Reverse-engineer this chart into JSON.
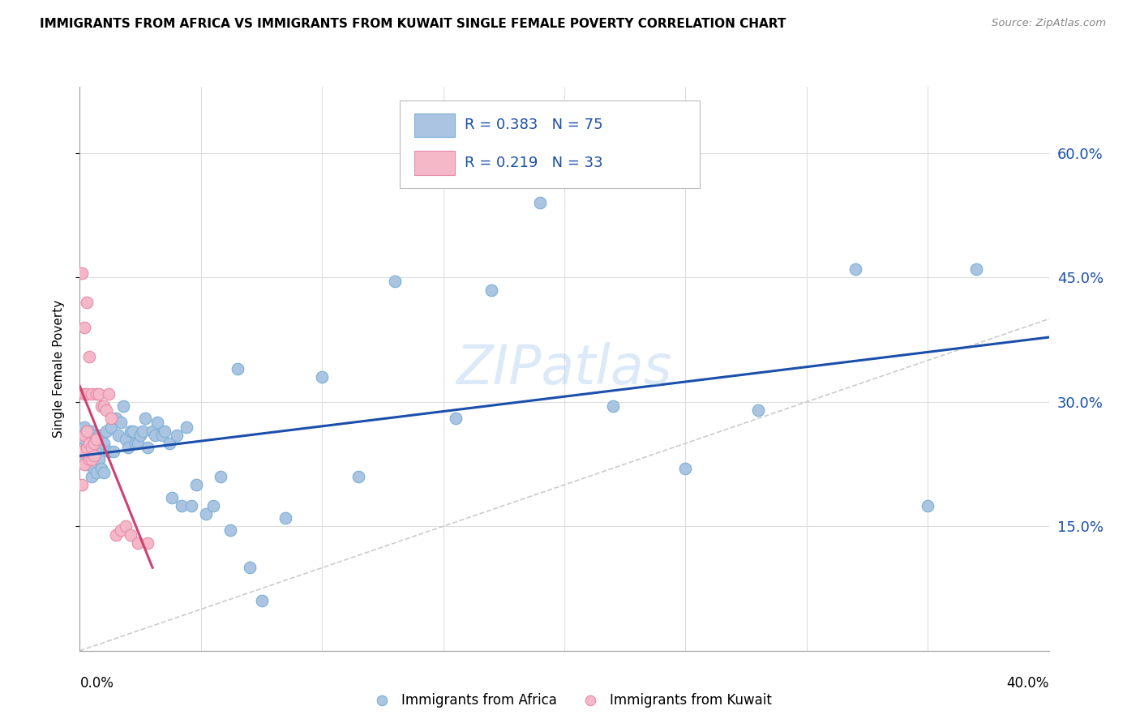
{
  "title": "IMMIGRANTS FROM AFRICA VS IMMIGRANTS FROM KUWAIT SINGLE FEMALE POVERTY CORRELATION CHART",
  "source": "Source: ZipAtlas.com",
  "ylabel": "Single Female Poverty",
  "ytick_labels": [
    "15.0%",
    "30.0%",
    "45.0%",
    "60.0%"
  ],
  "ytick_values": [
    0.15,
    0.3,
    0.45,
    0.6
  ],
  "xlim": [
    0.0,
    0.4
  ],
  "ylim": [
    0.0,
    0.68
  ],
  "legend_africa": "Immigrants from Africa",
  "legend_kuwait": "Immigrants from Kuwait",
  "r_africa": "0.383",
  "n_africa": "75",
  "r_kuwait": "0.219",
  "n_kuwait": "33",
  "africa_color": "#aac4e2",
  "africa_edge": "#7aafd4",
  "kuwait_color": "#f4b8c8",
  "kuwait_edge": "#e88aaa",
  "trendline_africa_color": "#1a4faa",
  "trendline_kuwait_color": "#d04070",
  "diagonal_color": "#cccccc",
  "background_color": "#ffffff",
  "grid_color": "#dddddd",
  "africa_x": [
    0.001,
    0.001,
    0.002,
    0.002,
    0.002,
    0.003,
    0.003,
    0.003,
    0.004,
    0.004,
    0.004,
    0.005,
    0.005,
    0.005,
    0.006,
    0.006,
    0.006,
    0.007,
    0.007,
    0.008,
    0.008,
    0.009,
    0.009,
    0.01,
    0.01,
    0.011,
    0.012,
    0.013,
    0.014,
    0.015,
    0.016,
    0.017,
    0.018,
    0.019,
    0.02,
    0.021,
    0.022,
    0.023,
    0.024,
    0.025,
    0.026,
    0.027,
    0.028,
    0.03,
    0.031,
    0.032,
    0.034,
    0.035,
    0.037,
    0.038,
    0.04,
    0.042,
    0.044,
    0.046,
    0.048,
    0.052,
    0.055,
    0.058,
    0.062,
    0.065,
    0.07,
    0.075,
    0.085,
    0.1,
    0.115,
    0.13,
    0.155,
    0.17,
    0.19,
    0.22,
    0.25,
    0.28,
    0.32,
    0.35,
    0.37
  ],
  "africa_y": [
    0.24,
    0.26,
    0.23,
    0.255,
    0.27,
    0.245,
    0.225,
    0.265,
    0.235,
    0.255,
    0.24,
    0.21,
    0.25,
    0.265,
    0.22,
    0.235,
    0.26,
    0.215,
    0.245,
    0.23,
    0.26,
    0.22,
    0.255,
    0.215,
    0.25,
    0.265,
    0.24,
    0.27,
    0.24,
    0.28,
    0.26,
    0.275,
    0.295,
    0.255,
    0.245,
    0.265,
    0.265,
    0.25,
    0.25,
    0.26,
    0.265,
    0.28,
    0.245,
    0.265,
    0.26,
    0.275,
    0.26,
    0.265,
    0.25,
    0.185,
    0.26,
    0.175,
    0.27,
    0.175,
    0.2,
    0.165,
    0.175,
    0.21,
    0.145,
    0.34,
    0.1,
    0.06,
    0.16,
    0.33,
    0.21,
    0.445,
    0.28,
    0.435,
    0.54,
    0.295,
    0.22,
    0.29,
    0.46,
    0.175,
    0.46
  ],
  "kuwait_x": [
    0.001,
    0.001,
    0.001,
    0.002,
    0.002,
    0.002,
    0.002,
    0.003,
    0.003,
    0.003,
    0.003,
    0.004,
    0.004,
    0.004,
    0.005,
    0.005,
    0.005,
    0.006,
    0.006,
    0.007,
    0.007,
    0.008,
    0.009,
    0.01,
    0.011,
    0.012,
    0.013,
    0.015,
    0.017,
    0.019,
    0.021,
    0.024,
    0.028
  ],
  "kuwait_y": [
    0.2,
    0.24,
    0.455,
    0.225,
    0.26,
    0.31,
    0.39,
    0.245,
    0.265,
    0.31,
    0.42,
    0.23,
    0.25,
    0.355,
    0.23,
    0.245,
    0.31,
    0.235,
    0.25,
    0.255,
    0.31,
    0.31,
    0.295,
    0.295,
    0.29,
    0.31,
    0.28,
    0.14,
    0.145,
    0.15,
    0.14,
    0.13,
    0.13
  ]
}
